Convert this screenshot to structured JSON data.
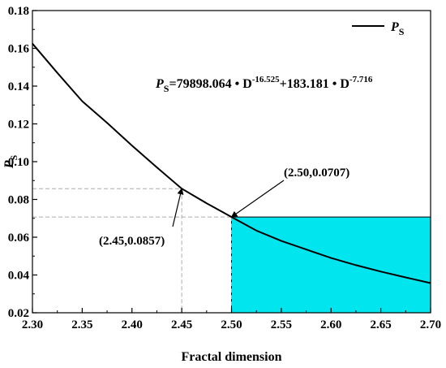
{
  "chart_data": {
    "type": "line",
    "xlabel": "Fractal dimension",
    "ylabel": {
      "main": "P",
      "sub": "S"
    },
    "xlim": [
      2.3,
      2.7
    ],
    "ylim": [
      0.02,
      0.18
    ],
    "x_ticks": [
      "2.30",
      "2.35",
      "2.40",
      "2.45",
      "2.50",
      "2.55",
      "2.60",
      "2.65",
      "2.70"
    ],
    "y_ticks": [
      "0.02",
      "0.04",
      "0.06",
      "0.08",
      "0.10",
      "0.12",
      "0.14",
      "0.16",
      "0.18"
    ],
    "legend": {
      "position": "top-right",
      "entries": [
        {
          "main": "P",
          "sub": "S"
        }
      ]
    },
    "series": [
      {
        "name": "PS",
        "color": "#000000",
        "x": [
          2.3,
          2.325,
          2.35,
          2.375,
          2.4,
          2.425,
          2.45,
          2.475,
          2.5,
          2.525,
          2.55,
          2.575,
          2.6,
          2.625,
          2.65,
          2.675,
          2.7
        ],
        "y": [
          0.1625,
          0.147,
          0.132,
          0.1205,
          0.1085,
          0.097,
          0.0857,
          0.078,
          0.0707,
          0.0635,
          0.058,
          0.0535,
          0.049,
          0.0452,
          0.0418,
          0.0387,
          0.0357
        ]
      }
    ],
    "formula": {
      "lhs_main": "P",
      "lhs_sub": "S",
      "part1": "=79898.064 • D",
      "exp1": "-16.525",
      "part2": "+183.181 • D",
      "exp2": "-7.716"
    },
    "shaded_region": {
      "x_from": 2.5,
      "x_to": 2.7,
      "y_from": 0.02,
      "y_to": 0.0707,
      "color": "#00e5ee"
    },
    "annotations": [
      {
        "label": "(2.50,0.0707)",
        "point": [
          2.5,
          0.0707
        ]
      },
      {
        "label": "(2.45,0.0857)",
        "point": [
          2.45,
          0.0857
        ]
      }
    ],
    "grid": false
  }
}
